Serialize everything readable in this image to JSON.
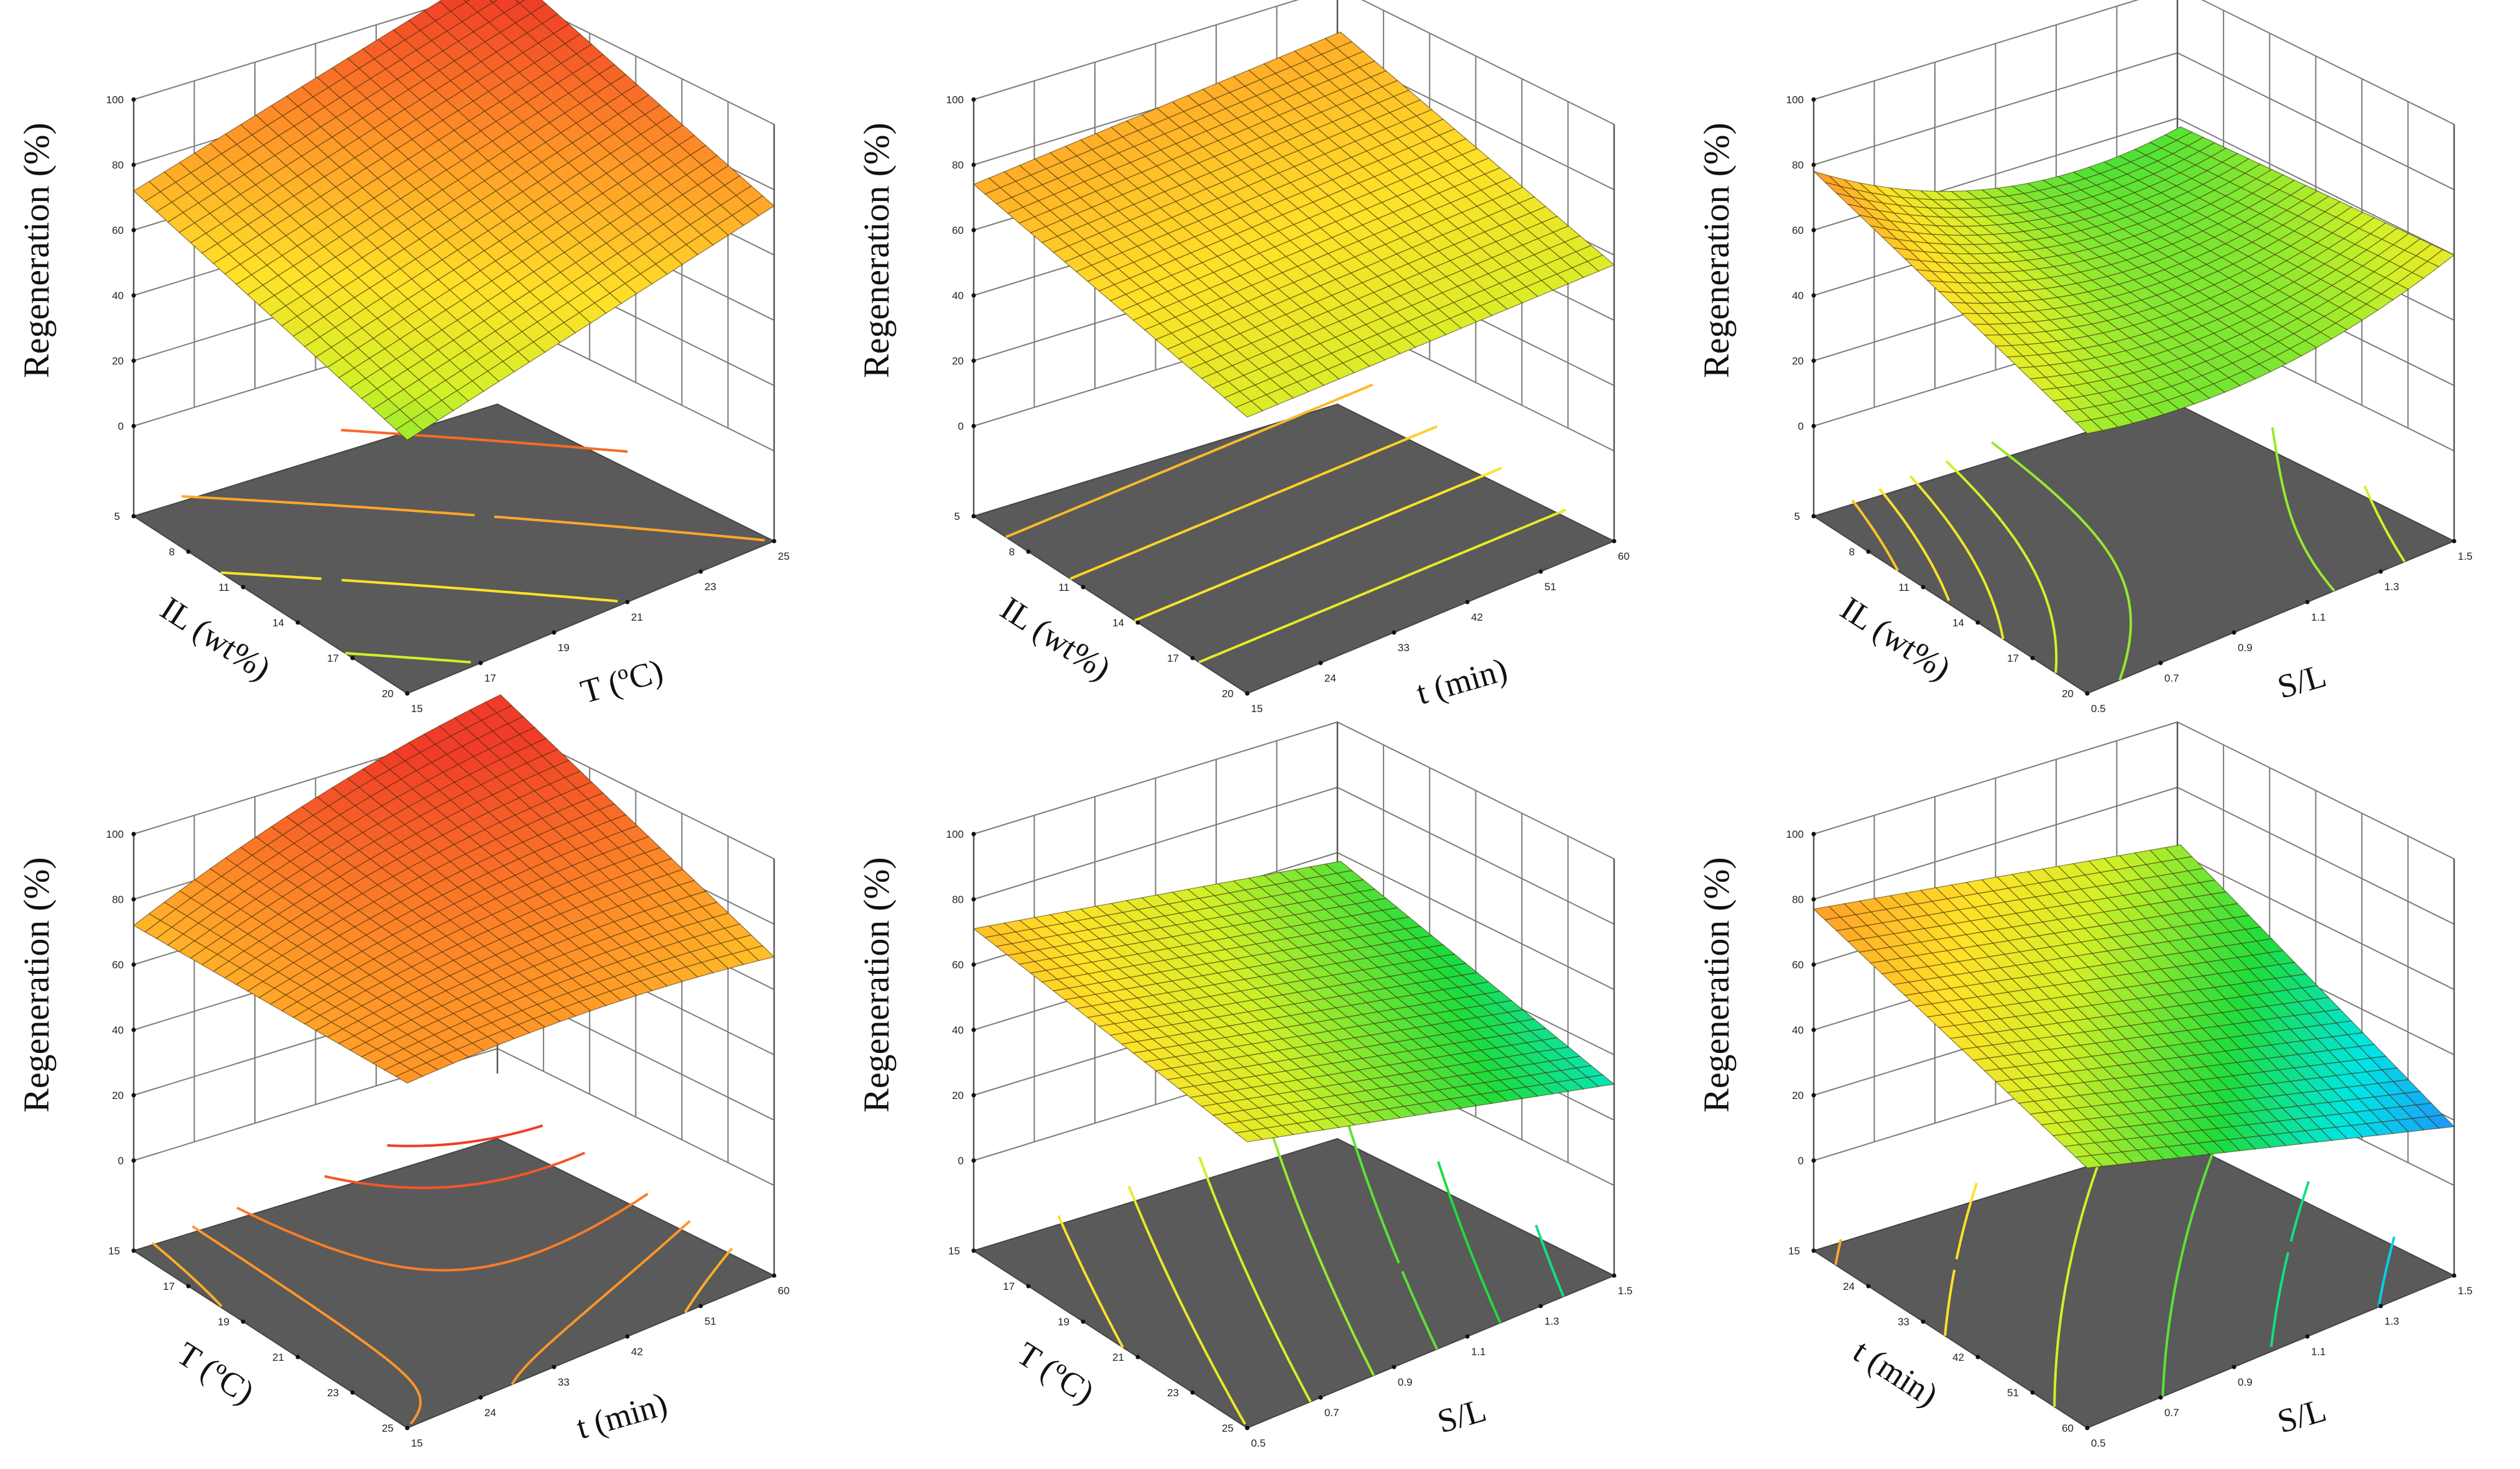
{
  "chart_data": [
    {
      "type": "surface3d",
      "zlabel": "Regeneration (%)",
      "zticks": [
        "0",
        "20",
        "40",
        "60",
        "80",
        "100"
      ],
      "zlim": [
        0,
        100
      ],
      "x": {
        "label": "IL (wt%)",
        "ticks": [
          "5",
          "8",
          "11",
          "14",
          "17",
          "20"
        ],
        "range": [
          5,
          20
        ]
      },
      "y": {
        "label": "T (ºC)",
        "ticks": [
          "15",
          "17",
          "19",
          "21",
          "23",
          "25"
        ],
        "range": [
          15,
          25
        ]
      },
      "corners": {
        "x0y0": 72,
        "x1y0": 50,
        "x0y1": 95,
        "x1y1": 75
      },
      "curvature": 0,
      "contour_levels": [
        55,
        65,
        75,
        85
      ]
    },
    {
      "type": "surface3d",
      "zlabel": "Regeneration (%)",
      "zticks": [
        "0",
        "20",
        "40",
        "60",
        "80",
        "100"
      ],
      "zlim": [
        0,
        100
      ],
      "x": {
        "label": "IL (wt%)",
        "ticks": [
          "5",
          "8",
          "11",
          "14",
          "17",
          "20"
        ],
        "range": [
          5,
          20
        ]
      },
      "y": {
        "label": "t (min)",
        "ticks": [
          "15",
          "24",
          "33",
          "42",
          "51",
          "60"
        ],
        "range": [
          15,
          60
        ]
      },
      "corners": {
        "x0y0": 74,
        "x1y0": 57,
        "x0y1": 74,
        "x1y1": 57
      },
      "curvature": 0,
      "contour_levels": [
        60,
        64,
        68,
        72
      ]
    },
    {
      "type": "surface3d",
      "zlabel": "Regeneration (%)",
      "zticks": [
        "0",
        "20",
        "40",
        "60",
        "80",
        "100"
      ],
      "zlim": [
        0,
        100
      ],
      "x": {
        "label": "IL (wt%)",
        "ticks": [
          "5",
          "8",
          "11",
          "14",
          "17",
          "20"
        ],
        "range": [
          5,
          20
        ]
      },
      "y": {
        "label": "S/L",
        "ticks": [
          "0.5",
          "0.7",
          "0.9",
          "1.1",
          "1.3",
          "1.5"
        ],
        "range": [
          0.5,
          1.5
        ]
      },
      "corners": {
        "x0y0": 78,
        "x1y0": 52,
        "x0y1": 45,
        "x1y1": 60
      },
      "curvature": -12,
      "contour_levels": [
        45,
        50,
        55,
        60,
        65,
        70
      ]
    },
    {
      "type": "surface3d",
      "zlabel": "Regeneration (%)",
      "zticks": [
        "0",
        "20",
        "40",
        "60",
        "80",
        "100"
      ],
      "zlim": [
        0,
        100
      ],
      "x": {
        "label": "T (ºC)",
        "ticks": [
          "15",
          "17",
          "19",
          "21",
          "23",
          "25"
        ],
        "range": [
          15,
          25
        ]
      },
      "y": {
        "label": "t (min)",
        "ticks": [
          "15",
          "24",
          "33",
          "42",
          "51",
          "60"
        ],
        "range": [
          15,
          60
        ]
      },
      "corners": {
        "x0y0": 72,
        "x1y0": 78,
        "x0y1": 96,
        "x1y1": 70
      },
      "curvature": 4,
      "contour_levels": [
        74,
        78,
        82,
        88,
        92
      ]
    },
    {
      "type": "surface3d",
      "zlabel": "Regeneration (%)",
      "zticks": [
        "0",
        "20",
        "40",
        "60",
        "80",
        "100"
      ],
      "zlim": [
        0,
        100
      ],
      "x": {
        "label": "T (ºC)",
        "ticks": [
          "15",
          "17",
          "19",
          "21",
          "23",
          "25"
        ],
        "range": [
          15,
          25
        ]
      },
      "y": {
        "label": "S/L",
        "ticks": [
          "0.5",
          "0.7",
          "0.9",
          "1.1",
          "1.3",
          "1.5"
        ],
        "range": [
          0.5,
          1.5
        ]
      },
      "corners": {
        "x0y0": 71,
        "x1y0": 60,
        "x0y1": 45,
        "x1y1": 31
      },
      "curvature": 0,
      "contour_levels": [
        35,
        40,
        45,
        50,
        55,
        60,
        65
      ]
    },
    {
      "type": "surface3d",
      "zlabel": "Regeneration (%)",
      "zticks": [
        "0",
        "20",
        "40",
        "60",
        "80",
        "100"
      ],
      "zlim": [
        0,
        100
      ],
      "x": {
        "label": "t (min)",
        "ticks": [
          "15",
          "24",
          "33",
          "42",
          "51",
          "60"
        ],
        "range": [
          15,
          60
        ]
      },
      "y": {
        "label": "S/L",
        "ticks": [
          "0.5",
          "0.7",
          "0.9",
          "1.1",
          "1.3",
          "1.5"
        ],
        "range": [
          0.5,
          1.5
        ]
      },
      "corners": {
        "x0y0": 77,
        "x1y0": 52,
        "x0y1": 50,
        "x1y1": 18
      },
      "curvature": 0,
      "contour_levels": [
        25,
        35,
        45,
        55,
        65,
        75
      ]
    }
  ]
}
